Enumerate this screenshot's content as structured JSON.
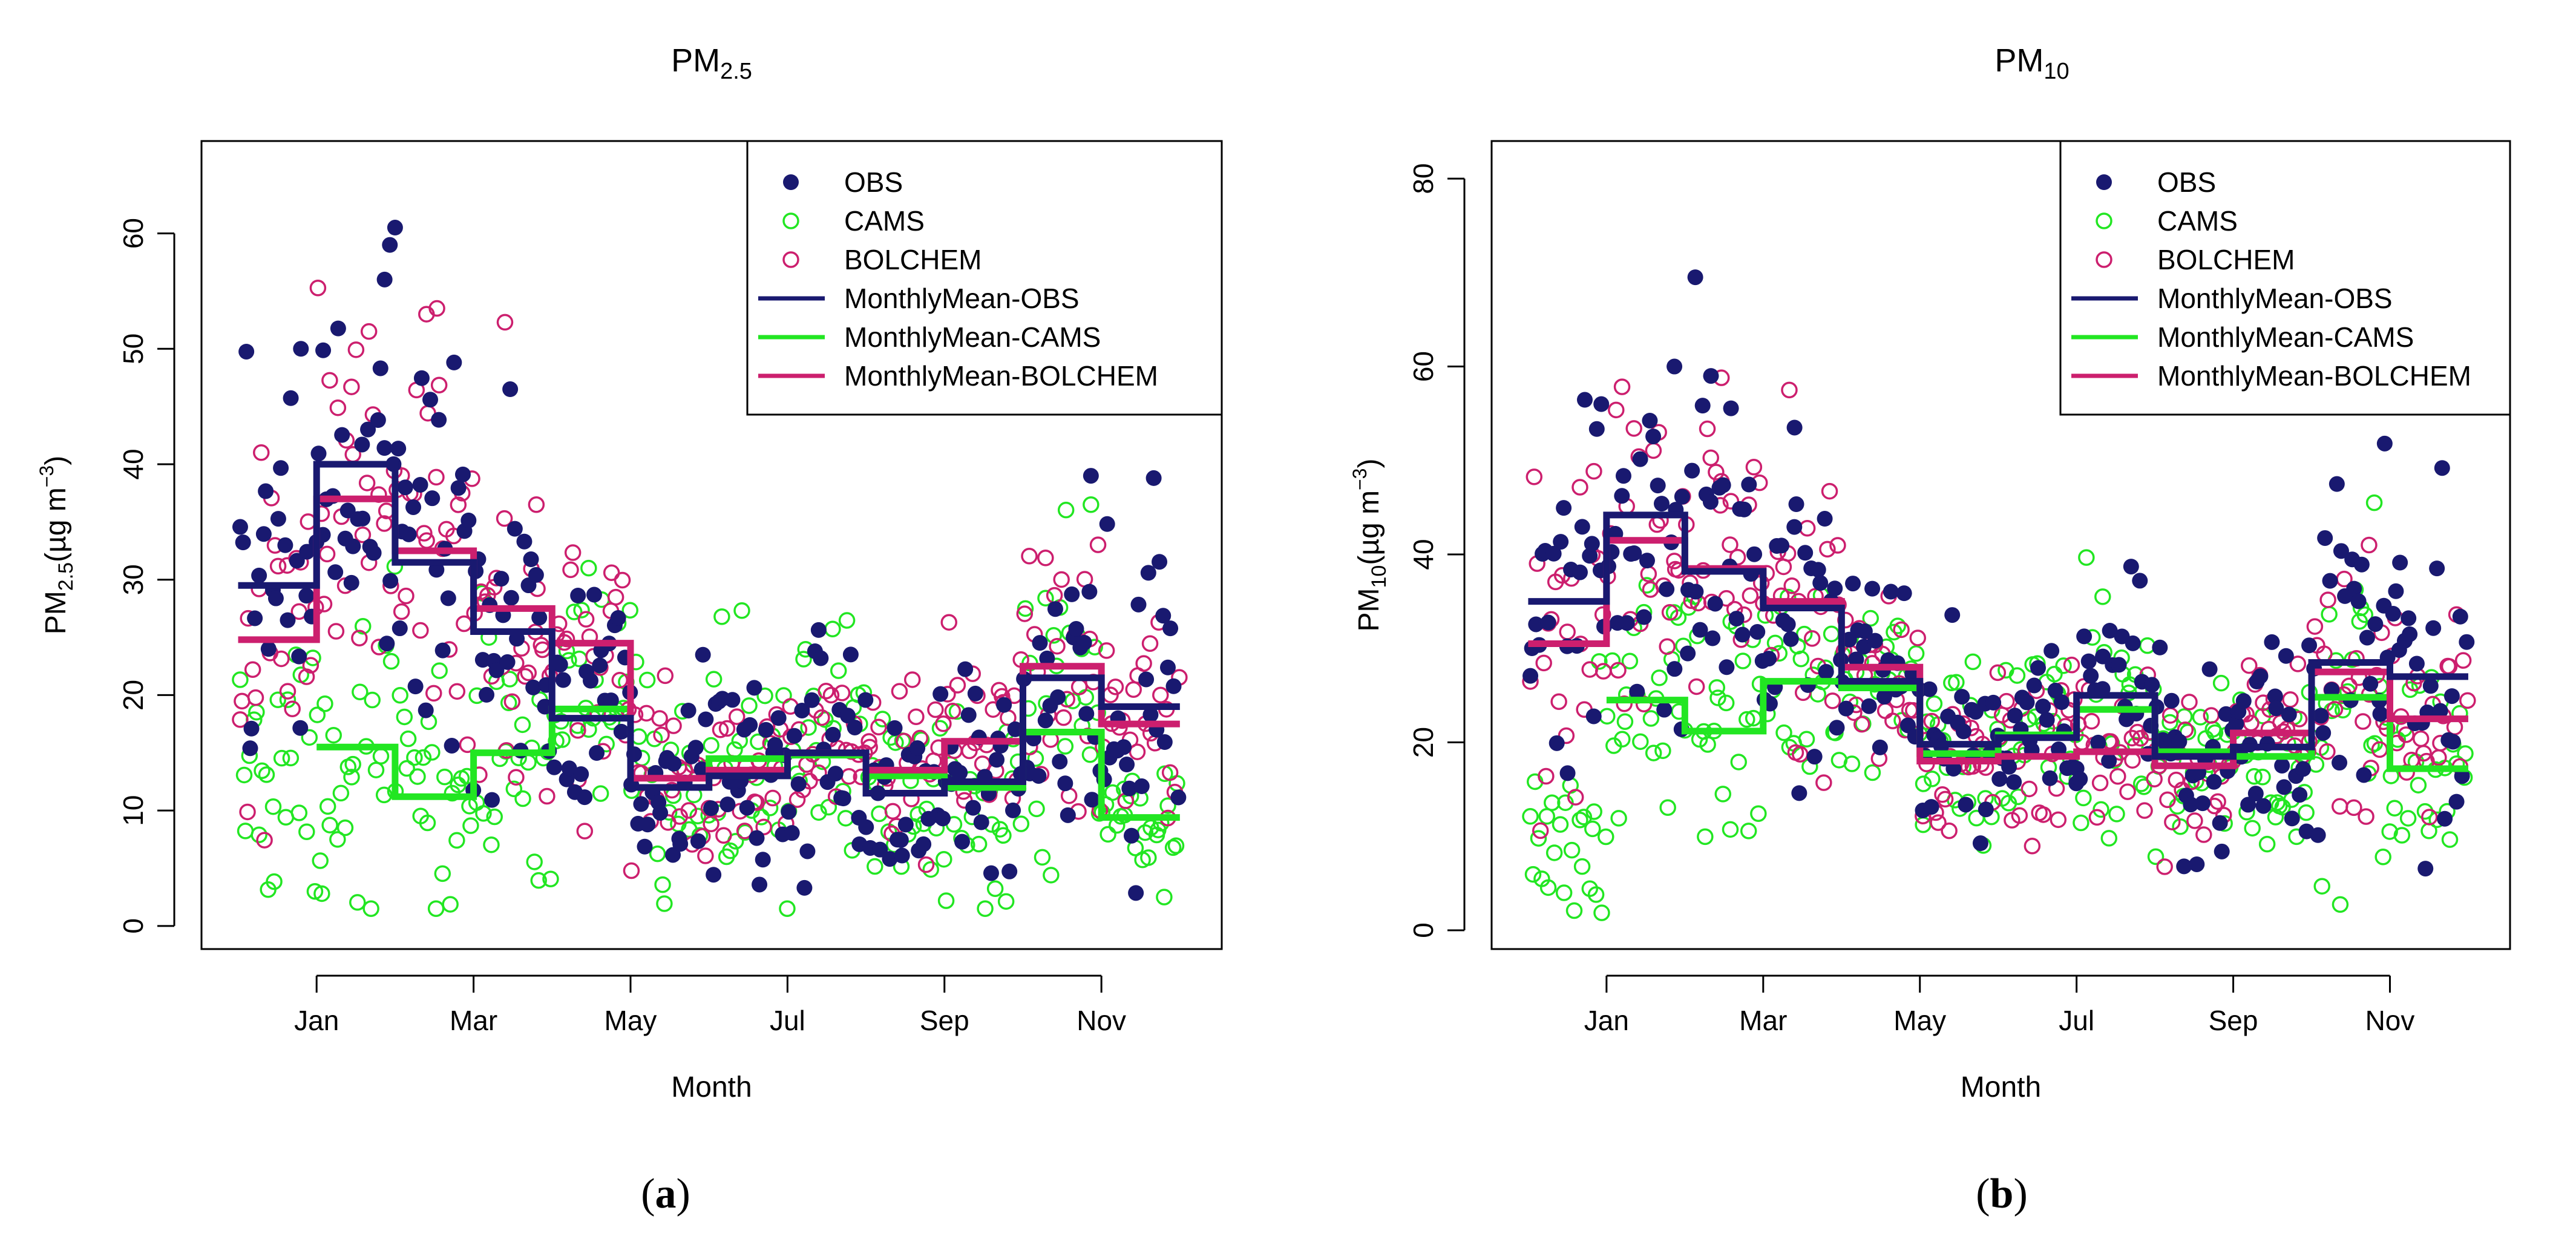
{
  "colors": {
    "obs": "#191970",
    "cams": "#22e622",
    "bolchem": "#cc1f6e",
    "axis": "#000000",
    "background": "#ffffff"
  },
  "chart_data": [
    {
      "type": "scatter",
      "id": "pm25",
      "caption_letter": "a",
      "title": "PM",
      "title_sub": "2.5",
      "xlabel": "Month",
      "ylabel": {
        "prefix": "PM",
        "sub": "2.5",
        "unit": "(µg m",
        "sup": "−3",
        "close": ")"
      },
      "xlim": [
        -2.2,
        17.3
      ],
      "ylim": [
        -2,
        68
      ],
      "x_ticks": [
        {
          "x": 0,
          "label": "Jan"
        },
        {
          "x": 3,
          "label": "Mar"
        },
        {
          "x": 6,
          "label": "May"
        },
        {
          "x": 9,
          "label": "Jul"
        },
        {
          "x": 12,
          "label": "Sep"
        },
        {
          "x": 15,
          "label": "Nov"
        }
      ],
      "y_ticks": [
        0,
        10,
        20,
        30,
        40,
        50,
        60
      ],
      "legend": {
        "position": "top-right",
        "entries": [
          {
            "label": "OBS",
            "key": "obs",
            "kind": "filled-point"
          },
          {
            "label": "CAMS",
            "key": "cams",
            "kind": "open-point"
          },
          {
            "label": "BOLCHEM",
            "key": "bolchem",
            "kind": "open-point"
          },
          {
            "label": "MonthlyMean-OBS",
            "key": "obs",
            "kind": "line"
          },
          {
            "label": "MonthlyMean-CAMS",
            "key": "cams",
            "kind": "line"
          },
          {
            "label": "MonthlyMean-BOLCHEM",
            "key": "bolchem",
            "kind": "line"
          }
        ]
      },
      "monthly_mean": {
        "x_edges": [
          -1.5,
          0,
          1.5,
          3,
          4.5,
          6,
          7.5,
          9,
          10.5,
          12,
          13.5,
          15,
          16.5
        ],
        "obs": [
          29.5,
          40.0,
          31.5,
          25.5,
          18.0,
          12.0,
          13.0,
          15.0,
          11.5,
          12.5,
          21.5,
          19.0
        ],
        "cams": [
          null,
          15.5,
          11.2,
          15.0,
          18.8,
          12.0,
          14.5,
          14.8,
          13.0,
          12.0,
          16.8,
          9.4
        ],
        "bolchem": [
          24.8,
          37.0,
          32.5,
          27.5,
          24.5,
          12.8,
          13.5,
          15.0,
          13.5,
          16.0,
          22.5,
          17.5
        ]
      },
      "scatter_profile": {
        "obs": {
          "spread": [
            8,
            9,
            9,
            7,
            6,
            5,
            5,
            5,
            4,
            4,
            7,
            7
          ],
          "peaks": [
            [
              1.5,
              60.5
            ],
            [
              1.4,
              59.0
            ],
            [
              1.3,
              56.0
            ],
            [
              -0.3,
              50.0
            ],
            [
              3.7,
              46.5
            ],
            [
              14.8,
              39.0
            ],
            [
              16.0,
              38.8
            ]
          ]
        },
        "cams": {
          "spread": [
            6,
            6,
            6,
            5,
            5,
            5,
            5,
            5,
            5,
            5,
            7,
            4
          ],
          "peaks": [
            [
              14.8,
              36.5
            ],
            [
              5.2,
              31.0
            ],
            [
              0.1,
              2.8
            ],
            [
              16.2,
              2.5
            ]
          ]
        },
        "bolchem": {
          "spread": [
            7,
            8,
            9,
            7,
            6,
            4,
            4,
            4,
            4,
            4,
            6,
            5
          ],
          "peaks": [
            [
              2.3,
              53.5
            ],
            [
              2.1,
              53.0
            ],
            [
              1.0,
              51.5
            ],
            [
              3.6,
              52.3
            ],
            [
              4.2,
              36.5
            ]
          ]
        }
      }
    },
    {
      "type": "scatter",
      "id": "pm10",
      "caption_letter": "b",
      "title": "PM",
      "title_sub": "10",
      "xlabel": "Month",
      "ylabel": {
        "prefix": "PM",
        "sub": "10",
        "unit": "(µg m",
        "sup": "−3",
        "close": ")"
      },
      "xlim": [
        -2.2,
        17.3
      ],
      "ylim": [
        -2,
        84
      ],
      "x_ticks": [
        {
          "x": 0,
          "label": "Jan"
        },
        {
          "x": 3,
          "label": "Mar"
        },
        {
          "x": 6,
          "label": "May"
        },
        {
          "x": 9,
          "label": "Jul"
        },
        {
          "x": 12,
          "label": "Sep"
        },
        {
          "x": 15,
          "label": "Nov"
        }
      ],
      "y_ticks": [
        0,
        20,
        40,
        60,
        80
      ],
      "legend": {
        "position": "top-right",
        "entries": [
          {
            "label": "OBS",
            "key": "obs",
            "kind": "filled-point"
          },
          {
            "label": "CAMS",
            "key": "cams",
            "kind": "open-point"
          },
          {
            "label": "BOLCHEM",
            "key": "bolchem",
            "kind": "open-point"
          },
          {
            "label": "MonthlyMean-OBS",
            "key": "obs",
            "kind": "line"
          },
          {
            "label": "MonthlyMean-CAMS",
            "key": "cams",
            "kind": "line"
          },
          {
            "label": "MonthlyMean-BOLCHEM",
            "key": "bolchem",
            "kind": "line"
          }
        ]
      },
      "monthly_mean": {
        "x_edges": [
          -1.5,
          0,
          1.5,
          3,
          4.5,
          6,
          7.5,
          9,
          10.5,
          12,
          13.5,
          15,
          16.5
        ],
        "obs": [
          35.0,
          44.2,
          38.2,
          34.3,
          26.5,
          19.8,
          20.5,
          25.0,
          18.5,
          19.5,
          28.5,
          27.0
        ],
        "cams": [
          null,
          24.5,
          21.2,
          26.5,
          25.8,
          18.8,
          20.8,
          23.5,
          19.0,
          18.5,
          24.8,
          17.2
        ],
        "bolchem": [
          30.5,
          41.5,
          38.5,
          35.0,
          28.0,
          18.0,
          18.5,
          19.0,
          17.5,
          21.0,
          27.5,
          22.5
        ]
      },
      "scatter_profile": {
        "obs": {
          "spread": [
            9,
            9,
            9,
            8,
            6,
            5,
            5,
            6,
            5,
            5,
            8,
            8
          ],
          "peaks": [
            [
              1.7,
              69.5
            ],
            [
              1.3,
              60.0
            ],
            [
              -0.1,
              56.0
            ],
            [
              2.0,
              59.0
            ],
            [
              14.9,
              51.8
            ],
            [
              16.0,
              49.2
            ],
            [
              3.6,
              53.5
            ]
          ]
        },
        "cams": {
          "spread": [
            7,
            7,
            7,
            6,
            6,
            5,
            5,
            6,
            5,
            5,
            8,
            5
          ],
          "peaks": [
            [
              -0.2,
              3.8
            ],
            [
              14.7,
              45.5
            ],
            [
              9.5,
              35.5
            ]
          ]
        },
        "bolchem": {
          "spread": [
            8,
            9,
            9,
            8,
            6,
            4,
            4,
            4,
            4,
            4,
            7,
            5
          ],
          "peaks": [
            [
              2.2,
              58.8
            ],
            [
              3.5,
              57.5
            ],
            [
              1.0,
              53.0
            ],
            [
              14.6,
              41.0
            ]
          ]
        }
      }
    }
  ]
}
